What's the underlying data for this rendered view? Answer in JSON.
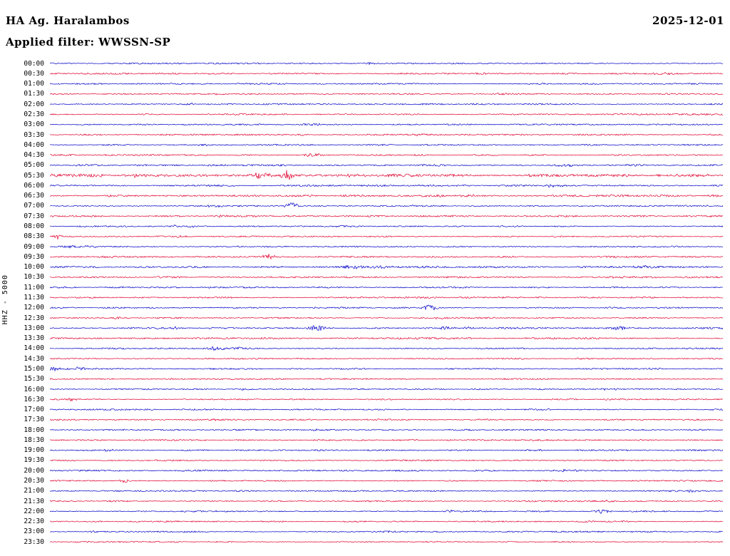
{
  "header": {
    "station_title": "HA Ag. Haralambos",
    "date": "2025-12-01",
    "filter_label": "Applied filter: WWSSN-SP"
  },
  "y_axis_label": "HHZ - 5000",
  "colors": {
    "blue": "#0000c8",
    "red": "#e1002e",
    "text": "#000000",
    "background": "#ffffff"
  },
  "chart_data": {
    "type": "line",
    "subtype": "helicorder-seismogram",
    "title": "HA Ag. Haralambos",
    "date": "2025-12-01",
    "applied_filter": "WWSSN-SP",
    "channel_scale_label": "HHZ - 5000",
    "minutes_per_row": 30,
    "grid": false,
    "legend_position": "none",
    "row_fields": {
      "t": "row start time",
      "c": "trace color",
      "n": "relative background noise level",
      "e": "events as [x_fraction_of_row, amplitude_px, width_px]"
    },
    "rows": [
      {
        "t": "00:00",
        "c": "blue",
        "n": 1,
        "e": [
          [
            0.477,
            1.0,
            8
          ]
        ]
      },
      {
        "t": "00:30",
        "c": "red",
        "n": 1,
        "e": [
          [
            0.64,
            1.1,
            8
          ],
          [
            0.92,
            1.0,
            20
          ]
        ]
      },
      {
        "t": "01:00",
        "c": "blue",
        "n": 1,
        "e": []
      },
      {
        "t": "01:30",
        "c": "red",
        "n": 1,
        "e": [
          [
            0.667,
            1.2,
            8
          ],
          [
            0.25,
            0.9,
            10
          ]
        ]
      },
      {
        "t": "02:00",
        "c": "blue",
        "n": 1,
        "e": [
          [
            0.207,
            1.3,
            8
          ],
          [
            0.63,
            1.0,
            10
          ]
        ]
      },
      {
        "t": "02:30",
        "c": "red",
        "n": 1.1,
        "e": [
          [
            0.143,
            1.2,
            8
          ],
          [
            0.85,
            1.0,
            12
          ]
        ]
      },
      {
        "t": "03:00",
        "c": "blue",
        "n": 1,
        "e": [
          [
            0.392,
            1.8,
            10
          ]
        ]
      },
      {
        "t": "03:30",
        "c": "red",
        "n": 1,
        "e": [
          [
            0.371,
            1.3,
            10
          ],
          [
            0.55,
            1.0,
            10
          ]
        ]
      },
      {
        "t": "04:00",
        "c": "blue",
        "n": 1,
        "e": [
          [
            0.23,
            0.9,
            8
          ]
        ]
      },
      {
        "t": "04:30",
        "c": "red",
        "n": 1,
        "e": [
          [
            0.392,
            2.5,
            12
          ],
          [
            0.55,
            1.0,
            10
          ]
        ]
      },
      {
        "t": "05:00",
        "c": "blue",
        "n": 1.3,
        "e": [
          [
            0.868,
            1.8,
            10
          ],
          [
            0.77,
            1.2,
            12
          ]
        ]
      },
      {
        "t": "05:30",
        "c": "red",
        "n": 2.0,
        "e": [
          [
            0.313,
            5.5,
            9
          ],
          [
            0.352,
            7.0,
            6
          ],
          [
            0.12,
            1.8,
            12
          ],
          [
            0.45,
            1.6,
            12
          ],
          [
            0.5,
            1.6,
            12
          ]
        ]
      },
      {
        "t": "06:00",
        "c": "blue",
        "n": 1.2,
        "e": [
          [
            0.75,
            2.5,
            8
          ],
          [
            0.6,
            1.2,
            10
          ]
        ]
      },
      {
        "t": "06:30",
        "c": "red",
        "n": 1.5,
        "e": [
          [
            0.62,
            1.5,
            12
          ],
          [
            0.985,
            1.8,
            8
          ]
        ]
      },
      {
        "t": "07:00",
        "c": "blue",
        "n": 1,
        "e": [
          [
            0.36,
            4.5,
            7
          ],
          [
            0.245,
            1.4,
            10
          ],
          [
            0.54,
            1.2,
            10
          ]
        ]
      },
      {
        "t": "07:30",
        "c": "red",
        "n": 1.2,
        "e": [
          [
            0.254,
            2.2,
            9
          ]
        ]
      },
      {
        "t": "08:00",
        "c": "blue",
        "n": 1,
        "e": [
          [
            0.185,
            1.5,
            6
          ],
          [
            0.21,
            1.3,
            6
          ],
          [
            0.435,
            1.2,
            8
          ]
        ]
      },
      {
        "t": "08:30",
        "c": "red",
        "n": 1,
        "e": [
          [
            0.012,
            3.5,
            4
          ],
          [
            0.2,
            0.9,
            10
          ]
        ]
      },
      {
        "t": "09:00",
        "c": "blue",
        "n": 1,
        "e": [
          [
            0.03,
            2.2,
            10
          ],
          [
            0.06,
            1.8,
            8
          ],
          [
            0.28,
            0.9,
            8
          ]
        ]
      },
      {
        "t": "09:30",
        "c": "red",
        "n": 1.2,
        "e": [
          [
            0.323,
            3.2,
            8
          ]
        ]
      },
      {
        "t": "10:00",
        "c": "blue",
        "n": 1.3,
        "e": [
          [
            0.45,
            1.8,
            18
          ],
          [
            0.49,
            2.0,
            12
          ],
          [
            0.88,
            2.2,
            10
          ],
          [
            0.905,
            1.8,
            8
          ]
        ]
      },
      {
        "t": "10:30",
        "c": "red",
        "n": 1.2,
        "e": [
          [
            0.84,
            1.2,
            15
          ]
        ]
      },
      {
        "t": "11:00",
        "c": "blue",
        "n": 1,
        "e": []
      },
      {
        "t": "11:30",
        "c": "red",
        "n": 1.1,
        "e": [
          [
            0.62,
            1.4,
            8
          ],
          [
            0.73,
            1.1,
            8
          ]
        ]
      },
      {
        "t": "12:00",
        "c": "blue",
        "n": 1,
        "e": [
          [
            0.565,
            4.5,
            7
          ]
        ]
      },
      {
        "t": "12:30",
        "c": "red",
        "n": 1,
        "e": [
          [
            0.06,
            1.6,
            10
          ],
          [
            0.1,
            1.5,
            8
          ],
          [
            0.58,
            1.0,
            10
          ]
        ]
      },
      {
        "t": "13:00",
        "c": "blue",
        "n": 1.3,
        "e": [
          [
            0.397,
            4.2,
            8
          ],
          [
            0.19,
            1.6,
            5
          ],
          [
            0.59,
            1.8,
            8
          ],
          [
            0.625,
            1.6,
            8
          ],
          [
            0.847,
            3.2,
            8
          ]
        ]
      },
      {
        "t": "13:30",
        "c": "red",
        "n": 1.2,
        "e": [
          [
            0.54,
            1.3,
            10
          ]
        ]
      },
      {
        "t": "14:00",
        "c": "blue",
        "n": 1,
        "e": [
          [
            0.244,
            2.6,
            10
          ],
          [
            0.28,
            1.6,
            12
          ]
        ]
      },
      {
        "t": "14:30",
        "c": "red",
        "n": 1,
        "e": []
      },
      {
        "t": "15:00",
        "c": "blue",
        "n": 1,
        "e": [
          [
            0.006,
            4.0,
            5
          ],
          [
            0.04,
            1.8,
            12
          ],
          [
            0.9,
            1.4,
            10
          ]
        ]
      },
      {
        "t": "15:30",
        "c": "red",
        "n": 1,
        "e": [
          [
            0.18,
            1.4,
            8
          ],
          [
            0.41,
            1.0,
            8
          ]
        ]
      },
      {
        "t": "16:00",
        "c": "blue",
        "n": 1,
        "e": [
          [
            0.29,
            1.2,
            8
          ],
          [
            0.83,
            1.2,
            12
          ]
        ]
      },
      {
        "t": "16:30",
        "c": "red",
        "n": 1,
        "e": [
          [
            0.032,
            1.8,
            6
          ]
        ]
      },
      {
        "t": "17:00",
        "c": "blue",
        "n": 1,
        "e": []
      },
      {
        "t": "17:30",
        "c": "red",
        "n": 1,
        "e": [
          [
            0.245,
            1.2,
            8
          ]
        ]
      },
      {
        "t": "18:00",
        "c": "blue",
        "n": 1,
        "e": [
          [
            0.4,
            1.3,
            8
          ]
        ]
      },
      {
        "t": "18:30",
        "c": "red",
        "n": 1,
        "e": []
      },
      {
        "t": "19:00",
        "c": "blue",
        "n": 1,
        "e": [
          [
            0.085,
            1.2,
            8
          ],
          [
            0.72,
            1.3,
            12
          ]
        ]
      },
      {
        "t": "19:30",
        "c": "red",
        "n": 1,
        "e": []
      },
      {
        "t": "20:00",
        "c": "blue",
        "n": 1.1,
        "e": [
          [
            0.77,
            1.4,
            15
          ]
        ]
      },
      {
        "t": "20:30",
        "c": "red",
        "n": 1,
        "e": [
          [
            0.111,
            2.8,
            5
          ]
        ]
      },
      {
        "t": "21:00",
        "c": "blue",
        "n": 1,
        "e": [
          [
            0.955,
            1.5,
            8
          ]
        ]
      },
      {
        "t": "21:30",
        "c": "red",
        "n": 1,
        "e": [
          [
            0.83,
            1.1,
            8
          ]
        ]
      },
      {
        "t": "22:00",
        "c": "blue",
        "n": 1,
        "e": [
          [
            0.821,
            3.2,
            8
          ],
          [
            0.595,
            1.5,
            6
          ]
        ]
      },
      {
        "t": "22:30",
        "c": "red",
        "n": 1,
        "e": []
      },
      {
        "t": "23:00",
        "c": "blue",
        "n": 1,
        "e": [
          [
            0.065,
            1.4,
            6
          ],
          [
            0.505,
            1.2,
            8
          ]
        ]
      },
      {
        "t": "23:30",
        "c": "red",
        "n": 1,
        "e": []
      }
    ]
  }
}
